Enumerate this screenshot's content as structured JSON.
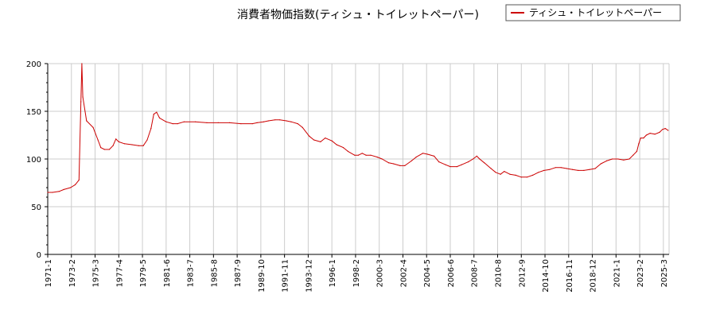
{
  "colors": {
    "series": "#cc0000",
    "grid": "#cccccc",
    "axis": "#000000",
    "background": "#ffffff"
  },
  "chart_data": {
    "type": "line",
    "title": "消費者物価指数(ティシュ・トイレットペーパー)",
    "xlabel": "",
    "ylabel": "",
    "ylim": [
      0,
      200
    ],
    "grid": true,
    "legend_position": "top-right",
    "yticks": [
      0,
      50,
      100,
      150,
      200
    ],
    "xticks": [
      "1971-1",
      "1973-2",
      "1975-3",
      "1977-4",
      "1979-5",
      "1981-6",
      "1983-7",
      "1985-8",
      "1987-9",
      "1989-10",
      "1991-11",
      "1993-12",
      "1996-1",
      "1998-2",
      "2000-3",
      "2002-4",
      "2004-5",
      "2006-6",
      "2008-7",
      "2010-8",
      "2012-9",
      "2014-10",
      "2016-11",
      "2018-12",
      "2021-1",
      "2023-2",
      "2025-3"
    ],
    "series": [
      {
        "name": "ティシュ・トイレットペーパー",
        "color": "#cc0000",
        "points": [
          [
            "1971-1",
            65
          ],
          [
            "1971-6",
            65
          ],
          [
            "1972-1",
            66
          ],
          [
            "1972-6",
            68
          ],
          [
            "1973-1",
            70
          ],
          [
            "1973-6",
            73
          ],
          [
            "1973-10",
            78
          ],
          [
            "1973-12",
            160
          ],
          [
            "1974-1",
            200
          ],
          [
            "1974-2",
            165
          ],
          [
            "1974-6",
            140
          ],
          [
            "1975-1",
            133
          ],
          [
            "1975-6",
            120
          ],
          [
            "1975-9",
            112
          ],
          [
            "1976-1",
            110
          ],
          [
            "1976-6",
            110
          ],
          [
            "1976-10",
            114
          ],
          [
            "1977-1",
            121
          ],
          [
            "1977-4",
            118
          ],
          [
            "1977-10",
            116
          ],
          [
            "1978-6",
            115
          ],
          [
            "1979-1",
            114
          ],
          [
            "1979-6",
            114
          ],
          [
            "1979-10",
            120
          ],
          [
            "1980-2",
            132
          ],
          [
            "1980-5",
            147
          ],
          [
            "1980-8",
            149
          ],
          [
            "1980-11",
            143
          ],
          [
            "1981-6",
            139
          ],
          [
            "1982-1",
            137
          ],
          [
            "1982-6",
            137
          ],
          [
            "1983-1",
            139
          ],
          [
            "1984-1",
            139
          ],
          [
            "1985-1",
            138
          ],
          [
            "1986-1",
            138
          ],
          [
            "1987-1",
            138
          ],
          [
            "1988-1",
            137
          ],
          [
            "1989-1",
            137
          ],
          [
            "1989-6",
            138
          ],
          [
            "1990-1",
            139
          ],
          [
            "1990-6",
            140
          ],
          [
            "1991-1",
            141
          ],
          [
            "1991-6",
            141
          ],
          [
            "1992-1",
            140
          ],
          [
            "1992-6",
            139
          ],
          [
            "1993-1",
            137
          ],
          [
            "1993-6",
            133
          ],
          [
            "1994-1",
            124
          ],
          [
            "1994-6",
            120
          ],
          [
            "1995-1",
            118
          ],
          [
            "1995-6",
            122
          ],
          [
            "1996-1",
            119
          ],
          [
            "1996-6",
            115
          ],
          [
            "1997-1",
            112
          ],
          [
            "1997-6",
            108
          ],
          [
            "1998-1",
            104
          ],
          [
            "1998-5",
            104
          ],
          [
            "1998-9",
            106
          ],
          [
            "1999-1",
            104
          ],
          [
            "1999-6",
            104
          ],
          [
            "2000-1",
            102
          ],
          [
            "2000-6",
            100
          ],
          [
            "2001-1",
            96
          ],
          [
            "2001-6",
            95
          ],
          [
            "2002-1",
            93
          ],
          [
            "2002-6",
            93
          ],
          [
            "2003-1",
            98
          ],
          [
            "2003-6",
            102
          ],
          [
            "2004-1",
            106
          ],
          [
            "2004-6",
            105
          ],
          [
            "2005-1",
            103
          ],
          [
            "2005-6",
            97
          ],
          [
            "2006-1",
            94
          ],
          [
            "2006-6",
            92
          ],
          [
            "2007-1",
            92
          ],
          [
            "2007-6",
            94
          ],
          [
            "2008-1",
            97
          ],
          [
            "2008-6",
            100
          ],
          [
            "2008-10",
            103
          ],
          [
            "2009-1",
            100
          ],
          [
            "2009-6",
            96
          ],
          [
            "2010-1",
            90
          ],
          [
            "2010-6",
            86
          ],
          [
            "2010-11",
            84
          ],
          [
            "2011-3",
            87
          ],
          [
            "2011-9",
            84
          ],
          [
            "2012-3",
            83
          ],
          [
            "2012-9",
            81
          ],
          [
            "2013-3",
            81
          ],
          [
            "2013-9",
            83
          ],
          [
            "2014-3",
            86
          ],
          [
            "2014-9",
            88
          ],
          [
            "2015-3",
            89
          ],
          [
            "2015-9",
            91
          ],
          [
            "2016-3",
            91
          ],
          [
            "2016-9",
            90
          ],
          [
            "2017-3",
            89
          ],
          [
            "2017-9",
            88
          ],
          [
            "2018-3",
            88
          ],
          [
            "2018-9",
            89
          ],
          [
            "2019-3",
            90
          ],
          [
            "2019-9",
            95
          ],
          [
            "2020-3",
            98
          ],
          [
            "2020-9",
            100
          ],
          [
            "2021-3",
            100
          ],
          [
            "2021-9",
            99
          ],
          [
            "2022-3",
            100
          ],
          [
            "2022-7",
            104
          ],
          [
            "2022-11",
            108
          ],
          [
            "2023-1",
            116
          ],
          [
            "2023-3",
            122
          ],
          [
            "2023-6",
            122
          ],
          [
            "2023-9",
            125
          ],
          [
            "2024-1",
            127
          ],
          [
            "2024-6",
            126
          ],
          [
            "2024-11",
            128
          ],
          [
            "2025-2",
            131
          ],
          [
            "2025-5",
            132
          ],
          [
            "2025-8",
            130
          ]
        ]
      }
    ]
  }
}
